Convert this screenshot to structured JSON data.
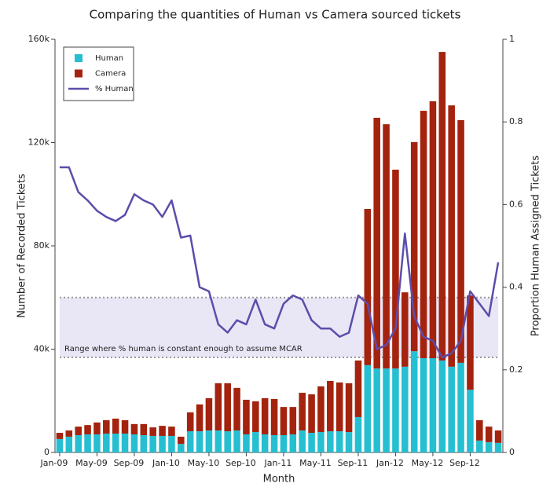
{
  "chart_data": {
    "type": "bar",
    "stacked": true,
    "title": "Comparing the quantities of Human vs Camera sourced tickets",
    "x_label": "Month",
    "y_label": "Number of Recorded Tickets",
    "y2_label": "Proportion Human Assigned Tickets",
    "categories": [
      "Jan-09",
      null,
      null,
      null,
      "May-09",
      null,
      null,
      null,
      "Sep-09",
      null,
      null,
      null,
      "Jan-10",
      null,
      null,
      null,
      "May-10",
      null,
      null,
      null,
      "Sep-10",
      null,
      null,
      null,
      "Jan-11",
      null,
      null,
      null,
      "May-11",
      null,
      null,
      null,
      "Sep-11",
      null,
      null,
      null,
      "Jan-12",
      null,
      null,
      null,
      "May-12",
      null,
      null,
      null,
      "Sep-12",
      null,
      null,
      null
    ],
    "series": [
      {
        "name": "Human",
        "type": "bar",
        "color": "#26bfd1",
        "values": [
          5200,
          6100,
          6700,
          7000,
          7000,
          7300,
          7300,
          7300,
          7000,
          6700,
          6400,
          6400,
          6400,
          3300,
          8200,
          8200,
          8500,
          8500,
          8200,
          8500,
          7000,
          7900,
          7000,
          6700,
          6700,
          7000,
          8500,
          7600,
          7900,
          8200,
          8200,
          7900,
          13700,
          33800,
          32500,
          32500,
          32500,
          33200,
          39200,
          36500,
          36500,
          35600,
          33200,
          34700,
          24300,
          4600,
          4000,
          3700
        ]
      },
      {
        "name": "Camera",
        "type": "bar",
        "color": "#a4230e",
        "values": [
          2400,
          2400,
          3300,
          3600,
          4600,
          5200,
          5800,
          5200,
          4000,
          4300,
          3300,
          3900,
          3600,
          2800,
          7300,
          10400,
          12500,
          18300,
          18600,
          16500,
          13400,
          11900,
          14000,
          14000,
          10900,
          10600,
          14600,
          14900,
          17700,
          19500,
          18900,
          18900,
          21900,
          60500,
          97100,
          94600,
          77000,
          28800,
          81000,
          95800,
          99500,
          119500,
          101200,
          94000,
          36500,
          7900,
          6000,
          4800
        ]
      },
      {
        "name": "% Human",
        "type": "line",
        "axis": "y2",
        "color": "#5e4caa",
        "values": [
          0.69,
          0.69,
          0.63,
          0.61,
          0.585,
          0.57,
          0.56,
          0.575,
          0.625,
          0.61,
          0.6,
          0.57,
          0.61,
          0.52,
          0.525,
          0.4,
          0.39,
          0.31,
          0.29,
          0.32,
          0.31,
          0.37,
          0.31,
          0.3,
          0.36,
          0.38,
          0.37,
          0.32,
          0.3,
          0.3,
          0.28,
          0.29,
          0.38,
          0.36,
          0.25,
          0.26,
          0.3,
          0.53,
          0.33,
          0.28,
          0.27,
          0.23,
          0.24,
          0.27,
          0.39,
          0.36,
          0.33,
          0.46
        ]
      }
    ],
    "ylim": [
      0,
      160000
    ],
    "yticks": [
      0,
      {
        "value": 40000,
        "label": "40k"
      },
      {
        "value": 80000,
        "label": "80k"
      },
      {
        "value": 120000,
        "label": "120k"
      },
      {
        "value": 160000,
        "label": "160k"
      }
    ],
    "y2lim": [
      0,
      1
    ],
    "y2ticks": [
      0,
      0.2,
      0.4,
      0.6,
      0.8,
      1
    ],
    "shaded_range": {
      "axis": "y2",
      "range": [
        0.23,
        0.375
      ],
      "label": "Range where % human is constant enough to assume MCAR"
    },
    "legend": "top-left",
    "grid": false
  }
}
